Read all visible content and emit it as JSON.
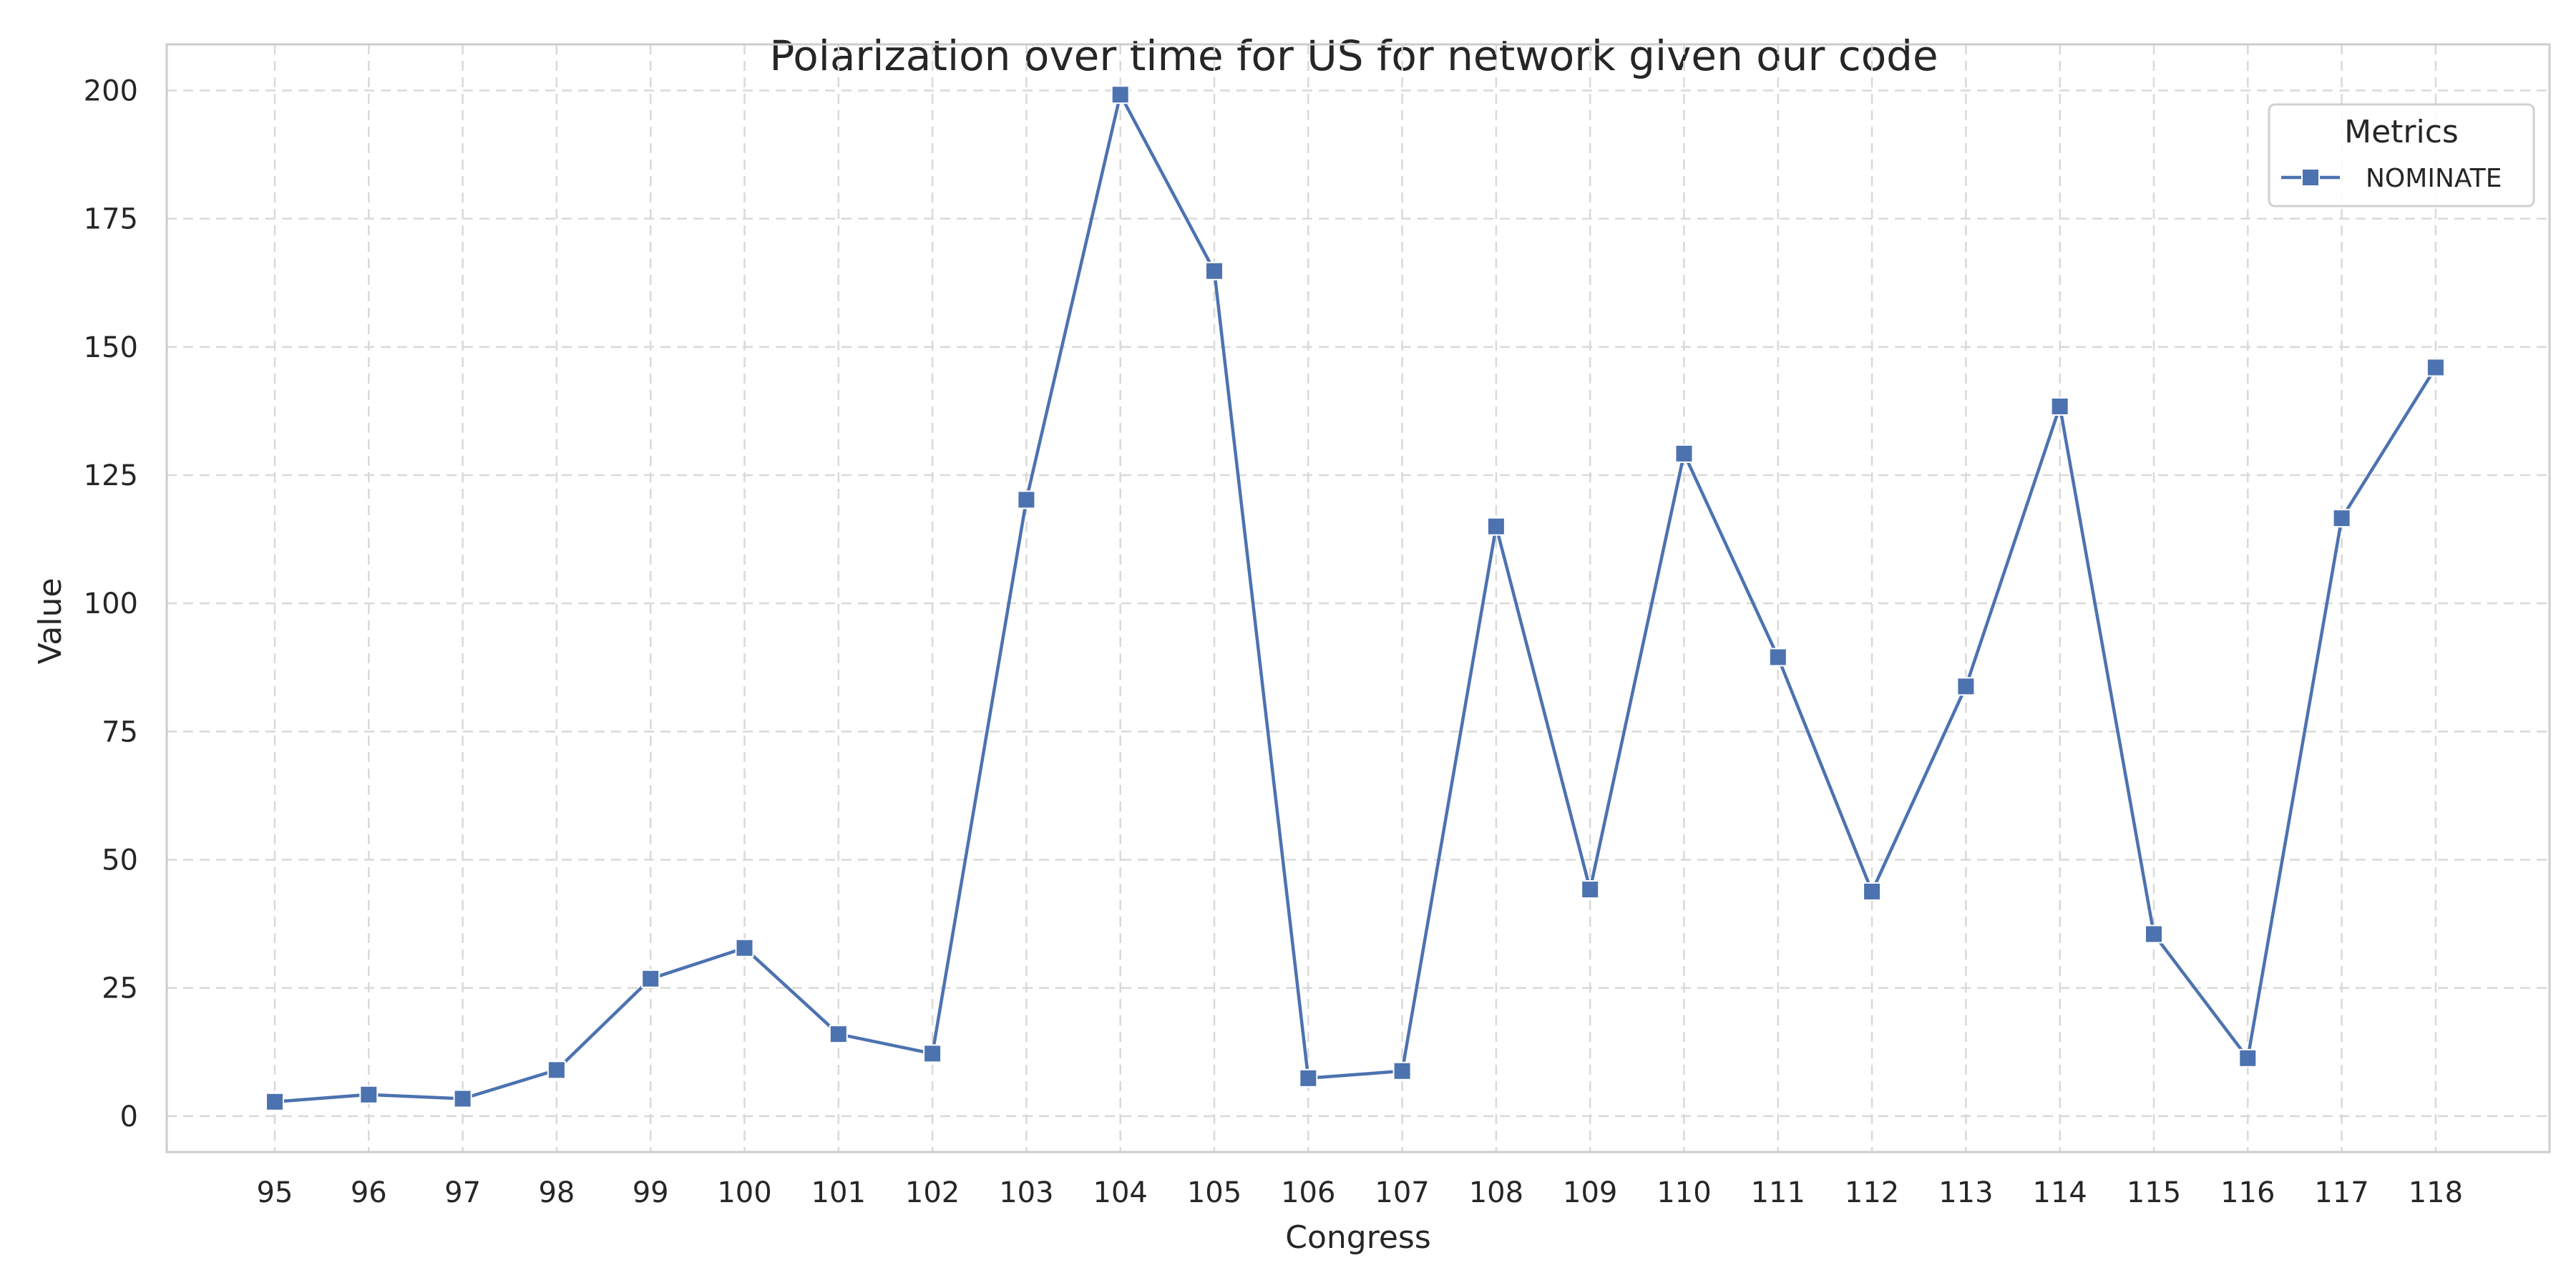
{
  "chart_data": {
    "type": "line",
    "title": "Polarization over time for US for network given our code",
    "xlabel": "Congress",
    "ylabel": "Value",
    "categories": [
      "95",
      "96",
      "97",
      "98",
      "99",
      "100",
      "101",
      "102",
      "103",
      "104",
      "105",
      "106",
      "107",
      "108",
      "109",
      "110",
      "111",
      "112",
      "113",
      "114",
      "115",
      "116",
      "117",
      "118"
    ],
    "series": [
      {
        "name": "NOMINATE",
        "color": "#4c72b0",
        "marker": "square",
        "values": [
          2.8,
          4.2,
          3.4,
          9.0,
          26.8,
          32.8,
          16.0,
          12.2,
          120.2,
          199.2,
          164.8,
          7.4,
          8.8,
          115.0,
          44.2,
          129.2,
          89.5,
          43.8,
          83.8,
          138.4,
          35.5,
          11.3,
          116.6,
          146.0
        ]
      }
    ],
    "yticks": [
      "0",
      "25",
      "50",
      "75",
      "100",
      "125",
      "150",
      "175",
      "200"
    ],
    "ylim": [
      -7,
      209
    ],
    "grid": true,
    "grid_style": "dashed",
    "legend": {
      "title": "Metrics",
      "placement": "top-right"
    }
  }
}
